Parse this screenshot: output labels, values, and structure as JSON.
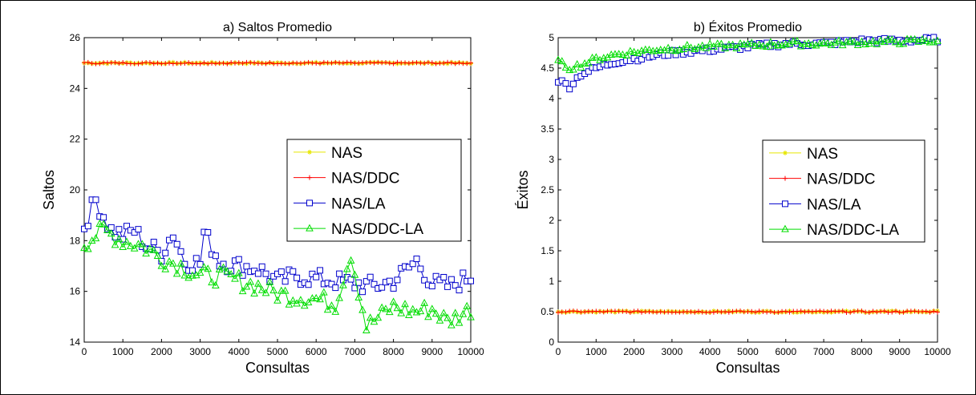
{
  "colors": {
    "NAS": "#e6e600",
    "NAS/DDC": "#ff0000",
    "NAS/LA": "#0000cc",
    "NAS/DDC-LA": "#00dd00"
  },
  "chart_data": [
    {
      "type": "line",
      "title": "a) Saltos Promedio",
      "xlabel": "Consultas",
      "ylabel": "Saltos",
      "xlim": [
        0,
        10000
      ],
      "ylim": [
        14,
        26
      ],
      "xticks": [
        0,
        1000,
        2000,
        3000,
        4000,
        5000,
        6000,
        7000,
        8000,
        9000,
        10000
      ],
      "yticks": [
        14,
        16,
        18,
        20,
        22,
        24,
        26
      ],
      "legend_position": "center-right",
      "grid": false,
      "x_step": 100,
      "series": [
        {
          "name": "NAS",
          "marker": "star",
          "values": "constant 25"
        },
        {
          "name": "NAS/DDC",
          "marker": "plus",
          "values": "constant 25"
        },
        {
          "name": "NAS/LA",
          "marker": "square",
          "keypoints": [
            [
              0,
              18.6
            ],
            [
              300,
              19.6
            ],
            [
              700,
              18.4
            ],
            [
              1000,
              18.2
            ],
            [
              1300,
              18.4
            ],
            [
              1600,
              17.8
            ],
            [
              2000,
              17.5
            ],
            [
              2300,
              18.3
            ],
            [
              2600,
              17.2
            ],
            [
              3000,
              17.1
            ],
            [
              3100,
              18.3
            ],
            [
              3500,
              17.2
            ],
            [
              4000,
              17.0
            ],
            [
              4500,
              16.9
            ],
            [
              5000,
              16.4
            ],
            [
              5500,
              16.6
            ],
            [
              6000,
              16.5
            ],
            [
              6500,
              16.4
            ],
            [
              7000,
              16.3
            ],
            [
              7500,
              16.2
            ],
            [
              8000,
              16.4
            ],
            [
              8600,
              17.2
            ],
            [
              9000,
              16.3
            ],
            [
              9500,
              16.2
            ],
            [
              10000,
              16.6
            ]
          ]
        },
        {
          "name": "NAS/DDC-LA",
          "marker": "triangle",
          "keypoints": [
            [
              0,
              17.9
            ],
            [
              500,
              18.4
            ],
            [
              1000,
              18.0
            ],
            [
              1500,
              17.8
            ],
            [
              2000,
              17.3
            ],
            [
              2500,
              17.0
            ],
            [
              3000,
              16.6
            ],
            [
              3500,
              16.6
            ],
            [
              4000,
              16.4
            ],
            [
              4500,
              16.2
            ],
            [
              5000,
              15.9
            ],
            [
              5500,
              15.8
            ],
            [
              6000,
              15.7
            ],
            [
              6500,
              15.5
            ],
            [
              6900,
              17.5
            ],
            [
              7300,
              14.6
            ],
            [
              8000,
              15.4
            ],
            [
              8500,
              15.2
            ],
            [
              9000,
              15.3
            ],
            [
              9400,
              14.8
            ],
            [
              10000,
              15.3
            ]
          ]
        }
      ]
    },
    {
      "type": "line",
      "title": "b) Éxitos Promedio",
      "xlabel": "Consultas",
      "ylabel": "Éxitos",
      "xlim": [
        0,
        10000
      ],
      "ylim": [
        0,
        5
      ],
      "xticks": [
        0,
        1000,
        2000,
        3000,
        4000,
        5000,
        6000,
        7000,
        8000,
        9000,
        10000
      ],
      "yticks": [
        0,
        0.5,
        1,
        1.5,
        2,
        2.5,
        3,
        3.5,
        4,
        4.5,
        5
      ],
      "legend_position": "center-right",
      "grid": false,
      "x_step": 100,
      "series": [
        {
          "name": "NAS",
          "marker": "star",
          "values": "constant 0.5"
        },
        {
          "name": "NAS/DDC",
          "marker": "plus",
          "values": "constant 0.5"
        },
        {
          "name": "NAS/LA",
          "marker": "square",
          "keypoints": [
            [
              0,
              4.3
            ],
            [
              300,
              4.2
            ],
            [
              600,
              4.4
            ],
            [
              1000,
              4.5
            ],
            [
              1500,
              4.6
            ],
            [
              2000,
              4.65
            ],
            [
              2500,
              4.7
            ],
            [
              3000,
              4.75
            ],
            [
              4000,
              4.8
            ],
            [
              5000,
              4.85
            ],
            [
              6000,
              4.9
            ],
            [
              7000,
              4.9
            ],
            [
              8000,
              4.95
            ],
            [
              9000,
              4.95
            ],
            [
              10000,
              4.97
            ]
          ]
        },
        {
          "name": "NAS/DDC-LA",
          "marker": "triangle",
          "keypoints": [
            [
              0,
              4.6
            ],
            [
              300,
              4.5
            ],
            [
              600,
              4.55
            ],
            [
              1000,
              4.65
            ],
            [
              1500,
              4.72
            ],
            [
              2000,
              4.76
            ],
            [
              2500,
              4.8
            ],
            [
              3000,
              4.82
            ],
            [
              4000,
              4.85
            ],
            [
              5000,
              4.87
            ],
            [
              6000,
              4.9
            ],
            [
              7000,
              4.9
            ],
            [
              8000,
              4.92
            ],
            [
              9000,
              4.93
            ],
            [
              10000,
              4.95
            ]
          ]
        }
      ]
    }
  ]
}
